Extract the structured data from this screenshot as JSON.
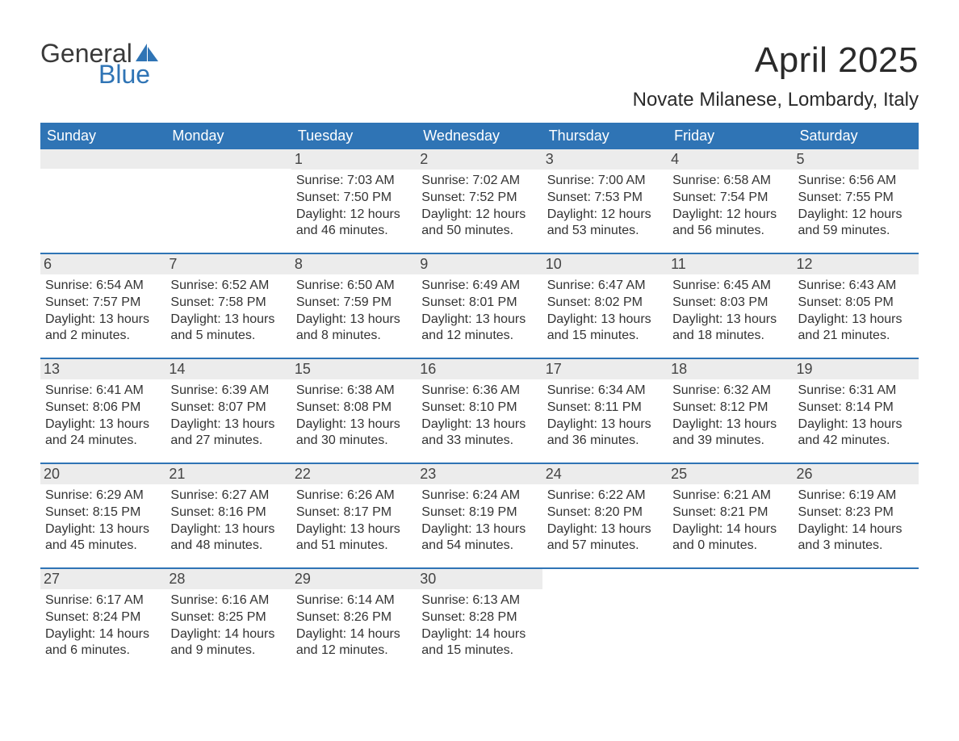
{
  "brand": {
    "word1": "General",
    "word2": "Blue",
    "text_color": "#3a3a3a",
    "accent_color": "#2f74b5"
  },
  "title": "April 2025",
  "location": "Novate Milanese, Lombardy, Italy",
  "colors": {
    "header_bg": "#2f74b5",
    "header_text": "#ffffff",
    "numbar_bg": "#ececec",
    "row_divider": "#2f74b5",
    "body_text": "#333333",
    "background": "#ffffff"
  },
  "typography": {
    "title_fontsize": 44,
    "location_fontsize": 24,
    "dayheader_fontsize": 18,
    "daynum_fontsize": 18,
    "body_fontsize": 16,
    "font_family": "Arial"
  },
  "layout": {
    "columns": 7,
    "rows": 5,
    "leading_blanks": 2,
    "trailing_blanks": 3
  },
  "day_headers": [
    "Sunday",
    "Monday",
    "Tuesday",
    "Wednesday",
    "Thursday",
    "Friday",
    "Saturday"
  ],
  "days": [
    {
      "n": 1,
      "sr": "7:03 AM",
      "ss": "7:50 PM",
      "dl": "12 hours and 46 minutes."
    },
    {
      "n": 2,
      "sr": "7:02 AM",
      "ss": "7:52 PM",
      "dl": "12 hours and 50 minutes."
    },
    {
      "n": 3,
      "sr": "7:00 AM",
      "ss": "7:53 PM",
      "dl": "12 hours and 53 minutes."
    },
    {
      "n": 4,
      "sr": "6:58 AM",
      "ss": "7:54 PM",
      "dl": "12 hours and 56 minutes."
    },
    {
      "n": 5,
      "sr": "6:56 AM",
      "ss": "7:55 PM",
      "dl": "12 hours and 59 minutes."
    },
    {
      "n": 6,
      "sr": "6:54 AM",
      "ss": "7:57 PM",
      "dl": "13 hours and 2 minutes."
    },
    {
      "n": 7,
      "sr": "6:52 AM",
      "ss": "7:58 PM",
      "dl": "13 hours and 5 minutes."
    },
    {
      "n": 8,
      "sr": "6:50 AM",
      "ss": "7:59 PM",
      "dl": "13 hours and 8 minutes."
    },
    {
      "n": 9,
      "sr": "6:49 AM",
      "ss": "8:01 PM",
      "dl": "13 hours and 12 minutes."
    },
    {
      "n": 10,
      "sr": "6:47 AM",
      "ss": "8:02 PM",
      "dl": "13 hours and 15 minutes."
    },
    {
      "n": 11,
      "sr": "6:45 AM",
      "ss": "8:03 PM",
      "dl": "13 hours and 18 minutes."
    },
    {
      "n": 12,
      "sr": "6:43 AM",
      "ss": "8:05 PM",
      "dl": "13 hours and 21 minutes."
    },
    {
      "n": 13,
      "sr": "6:41 AM",
      "ss": "8:06 PM",
      "dl": "13 hours and 24 minutes."
    },
    {
      "n": 14,
      "sr": "6:39 AM",
      "ss": "8:07 PM",
      "dl": "13 hours and 27 minutes."
    },
    {
      "n": 15,
      "sr": "6:38 AM",
      "ss": "8:08 PM",
      "dl": "13 hours and 30 minutes."
    },
    {
      "n": 16,
      "sr": "6:36 AM",
      "ss": "8:10 PM",
      "dl": "13 hours and 33 minutes."
    },
    {
      "n": 17,
      "sr": "6:34 AM",
      "ss": "8:11 PM",
      "dl": "13 hours and 36 minutes."
    },
    {
      "n": 18,
      "sr": "6:32 AM",
      "ss": "8:12 PM",
      "dl": "13 hours and 39 minutes."
    },
    {
      "n": 19,
      "sr": "6:31 AM",
      "ss": "8:14 PM",
      "dl": "13 hours and 42 minutes."
    },
    {
      "n": 20,
      "sr": "6:29 AM",
      "ss": "8:15 PM",
      "dl": "13 hours and 45 minutes."
    },
    {
      "n": 21,
      "sr": "6:27 AM",
      "ss": "8:16 PM",
      "dl": "13 hours and 48 minutes."
    },
    {
      "n": 22,
      "sr": "6:26 AM",
      "ss": "8:17 PM",
      "dl": "13 hours and 51 minutes."
    },
    {
      "n": 23,
      "sr": "6:24 AM",
      "ss": "8:19 PM",
      "dl": "13 hours and 54 minutes."
    },
    {
      "n": 24,
      "sr": "6:22 AM",
      "ss": "8:20 PM",
      "dl": "13 hours and 57 minutes."
    },
    {
      "n": 25,
      "sr": "6:21 AM",
      "ss": "8:21 PM",
      "dl": "14 hours and 0 minutes."
    },
    {
      "n": 26,
      "sr": "6:19 AM",
      "ss": "8:23 PM",
      "dl": "14 hours and 3 minutes."
    },
    {
      "n": 27,
      "sr": "6:17 AM",
      "ss": "8:24 PM",
      "dl": "14 hours and 6 minutes."
    },
    {
      "n": 28,
      "sr": "6:16 AM",
      "ss": "8:25 PM",
      "dl": "14 hours and 9 minutes."
    },
    {
      "n": 29,
      "sr": "6:14 AM",
      "ss": "8:26 PM",
      "dl": "14 hours and 12 minutes."
    },
    {
      "n": 30,
      "sr": "6:13 AM",
      "ss": "8:28 PM",
      "dl": "14 hours and 15 minutes."
    }
  ],
  "labels": {
    "sunrise": "Sunrise:",
    "sunset": "Sunset:",
    "daylight": "Daylight:"
  }
}
